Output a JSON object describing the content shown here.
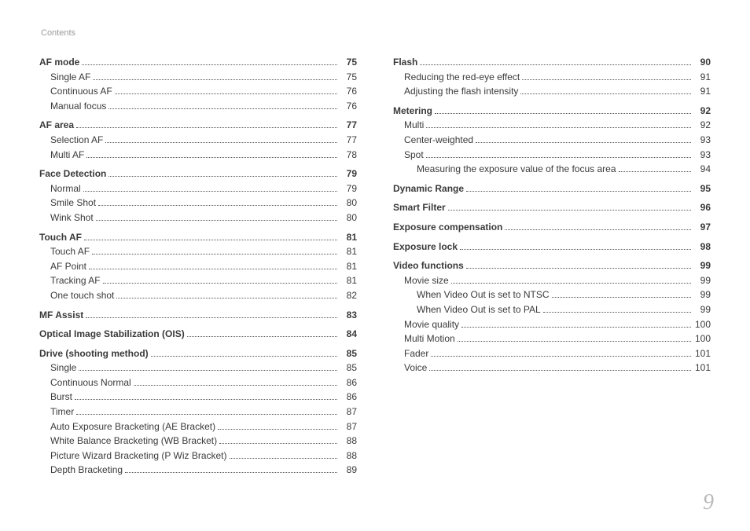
{
  "header": "Contents",
  "page_number": "9",
  "left": [
    {
      "level": 0,
      "label": "AF mode",
      "page": "75"
    },
    {
      "level": 1,
      "label": "Single AF",
      "page": "75"
    },
    {
      "level": 1,
      "label": "Continuous AF",
      "page": "76"
    },
    {
      "level": 1,
      "label": "Manual focus",
      "page": "76"
    },
    {
      "level": 0,
      "label": "AF area",
      "page": "77"
    },
    {
      "level": 1,
      "label": "Selection AF ",
      "page": "77"
    },
    {
      "level": 1,
      "label": "Multi AF",
      "page": "78"
    },
    {
      "level": 0,
      "label": "Face Detection ",
      "page": "79"
    },
    {
      "level": 1,
      "label": "Normal",
      "page": "79"
    },
    {
      "level": 1,
      "label": "Smile Shot",
      "page": "80"
    },
    {
      "level": 1,
      "label": "Wink Shot",
      "page": "80"
    },
    {
      "level": 0,
      "label": "Touch AF",
      "page": "81"
    },
    {
      "level": 1,
      "label": "Touch AF",
      "page": "81"
    },
    {
      "level": 1,
      "label": "AF Point",
      "page": "81"
    },
    {
      "level": 1,
      "label": "Tracking AF",
      "page": "81"
    },
    {
      "level": 1,
      "label": "One touch shot ",
      "page": "82"
    },
    {
      "level": 0,
      "label": "MF Assist ",
      "page": "83"
    },
    {
      "level": 0,
      "label": "Optical Image Stabilization (OIS) ",
      "page": "84"
    },
    {
      "level": 0,
      "label": "Drive (shooting method) ",
      "page": "85"
    },
    {
      "level": 1,
      "label": "Single",
      "page": "85"
    },
    {
      "level": 1,
      "label": "Continuous Normal",
      "page": "86"
    },
    {
      "level": 1,
      "label": "Burst",
      "page": "86"
    },
    {
      "level": 1,
      "label": "Timer",
      "page": "87"
    },
    {
      "level": 1,
      "label": "Auto Exposure Bracketing (AE Bracket)",
      "page": "87"
    },
    {
      "level": 1,
      "label": "White Balance Bracketing (WB Bracket)",
      "page": "88"
    },
    {
      "level": 1,
      "label": "Picture Wizard Bracketing (P Wiz Bracket)",
      "page": "88"
    },
    {
      "level": 1,
      "label": "Depth Bracketing ",
      "page": "89"
    }
  ],
  "right": [
    {
      "level": 0,
      "label": "Flash",
      "page": "90"
    },
    {
      "level": 1,
      "label": "Reducing the red-eye effect",
      "page": "91"
    },
    {
      "level": 1,
      "label": "Adjusting the flash intensity ",
      "page": "91"
    },
    {
      "level": 0,
      "label": "Metering",
      "page": "92"
    },
    {
      "level": 1,
      "label": "Multi",
      "page": "92"
    },
    {
      "level": 1,
      "label": "Center-weighted ",
      "page": "93"
    },
    {
      "level": 1,
      "label": "Spot",
      "page": "93"
    },
    {
      "level": 2,
      "label": "Measuring the exposure value of the focus area  ",
      "page": "94"
    },
    {
      "level": 0,
      "label": "Dynamic Range ",
      "page": "95"
    },
    {
      "level": 0,
      "label": "Smart Filter",
      "page": "96"
    },
    {
      "level": 0,
      "label": "Exposure compensation",
      "page": "97"
    },
    {
      "level": 0,
      "label": "Exposure lock",
      "page": "98"
    },
    {
      "level": 0,
      "label": "Video functions ",
      "page": "99"
    },
    {
      "level": 1,
      "label": "Movie size",
      "page": "99"
    },
    {
      "level": 2,
      "label": "When Video Out is set to NTSC ",
      "page": "99"
    },
    {
      "level": 2,
      "label": "When Video Out is set to PAL ",
      "page": "99"
    },
    {
      "level": 1,
      "label": "Movie quality ",
      "page": "100"
    },
    {
      "level": 1,
      "label": "Multi Motion ",
      "page": "100"
    },
    {
      "level": 1,
      "label": "Fader ",
      "page": "101"
    },
    {
      "level": 1,
      "label": "Voice",
      "page": "101"
    }
  ]
}
